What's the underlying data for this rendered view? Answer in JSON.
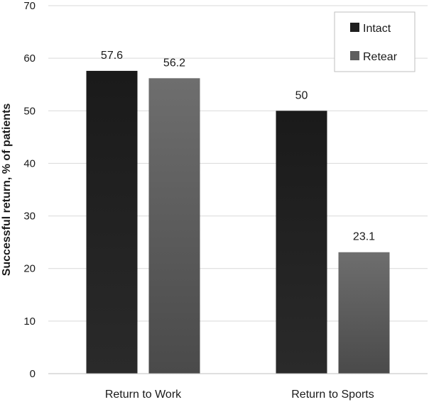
{
  "chart_data": {
    "type": "bar",
    "categories": [
      "Return to Work",
      "Return to Sports"
    ],
    "series": [
      {
        "name": "Intact",
        "values": [
          57.6,
          50
        ],
        "labels": [
          "57.6",
          "50"
        ],
        "color": "#1f1f1f"
      },
      {
        "name": "Retear",
        "values": [
          56.2,
          23.1
        ],
        "labels": [
          "56.2",
          "23.1"
        ],
        "color": "#5e5e5e"
      }
    ],
    "ylabel": "Successful return, % of patients",
    "xlabel": "",
    "ylim": [
      0,
      70
    ],
    "yticks": [
      0,
      10,
      20,
      30,
      40,
      50,
      60,
      70
    ],
    "grid": true,
    "legend_position": "top-right"
  }
}
